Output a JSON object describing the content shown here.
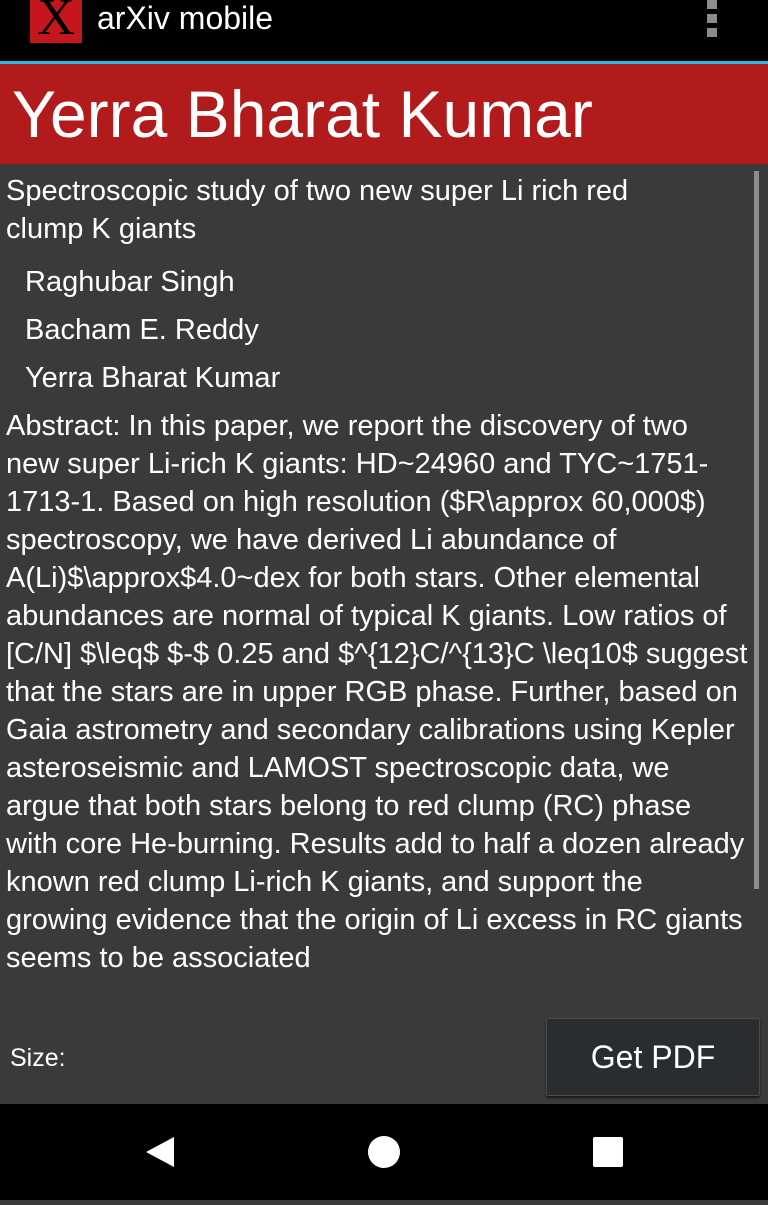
{
  "app": {
    "icon_letter": "X",
    "title": "arXiv mobile"
  },
  "header": {
    "name": "Yerra Bharat Kumar"
  },
  "paper": {
    "title": "Spectroscopic study of two new super Li rich red clump K giants",
    "authors": [
      "Raghubar Singh",
      "Bacham E. Reddy",
      "Yerra Bharat Kumar"
    ],
    "abstract": "Abstract:   In this paper, we report the discovery of two new super Li-rich K giants: HD~24960 and TYC~1751-1713-1. Based on high resolution ($R\\approx 60,000$) spectroscopy, we have derived Li abundance of A(Li)$\\approx$4.0~dex for both stars. Other elemental abundances are normal of typical K giants. Low ratios of [C/N] $\\leq$ $-$ 0.25 and $^{12}C/^{13}C \\leq10$ suggest that the stars are in upper RGB phase. Further, based on Gaia astrometry and secondary calibrations using Kepler asteroseismic and LAMOST spectroscopic data, we argue that both stars belong to red clump (RC) phase with core He-burning. Results add to half a dozen already known red clump Li-rich K giants, and support the growing evidence that the origin of Li excess in RC giants seems to be associated"
  },
  "footer": {
    "size_label": "Size:",
    "get_pdf_label": "Get PDF"
  },
  "icons": {
    "app": "arxiv-x-icon",
    "overflow": "overflow-menu-icon",
    "back": "back-triangle-icon",
    "home": "home-circle-icon",
    "recents": "recents-square-icon"
  },
  "colors": {
    "title_bar": "#b21b1b",
    "background": "#3a3a3a",
    "accent_line": "#33b5e5",
    "app_icon": "#c4161c"
  }
}
